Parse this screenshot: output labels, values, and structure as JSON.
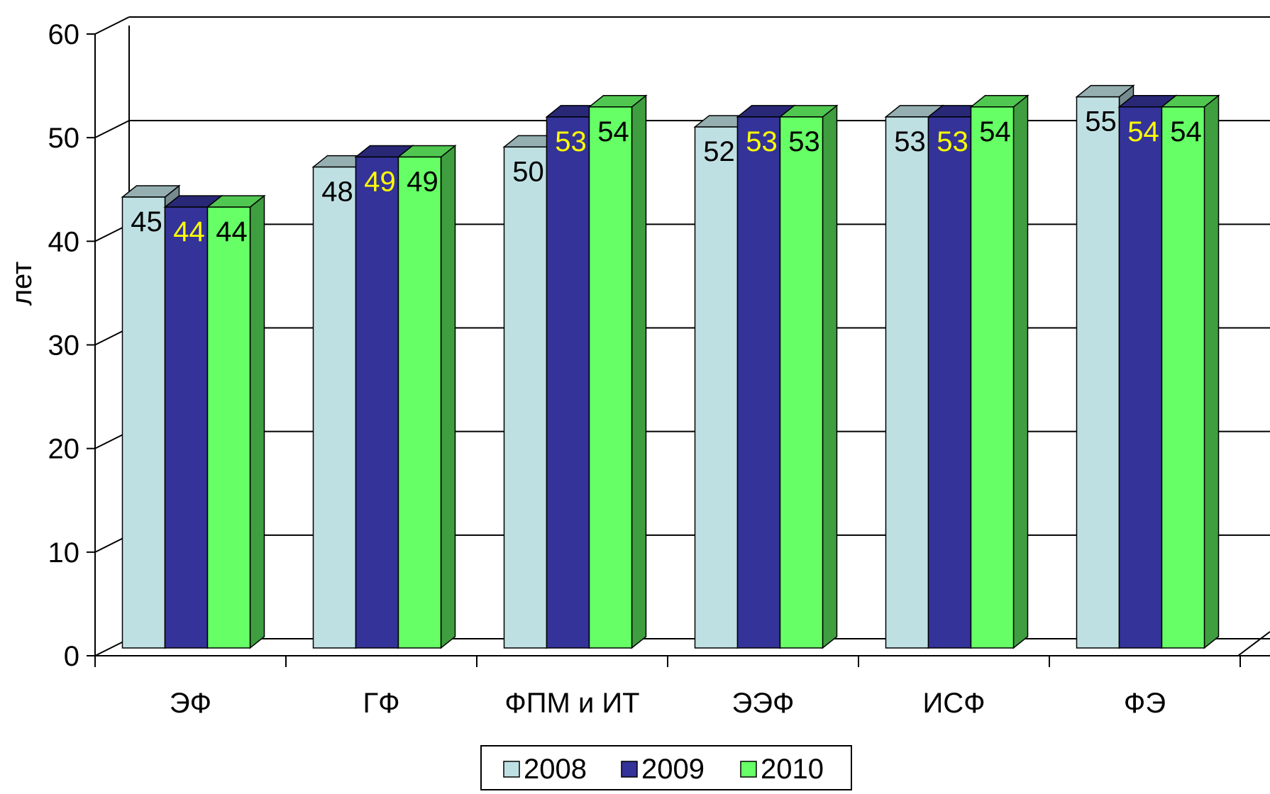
{
  "chart_data": {
    "type": "bar",
    "title": "",
    "xlabel": "",
    "ylabel": "лет",
    "ylim": [
      0,
      60
    ],
    "yticks": [
      "0",
      "10",
      "20",
      "30",
      "40",
      "50",
      "60"
    ],
    "categories": [
      "ЭФ",
      "ГФ",
      "ФПМ и ИТ",
      "ЭЭФ",
      "ИСФ",
      "ФЭ"
    ],
    "series": [
      {
        "name": "2008",
        "values": [
          45,
          48,
          50,
          52,
          53,
          55
        ],
        "color": "#bfe0e3",
        "label_color": "#000000"
      },
      {
        "name": "2009",
        "values": [
          44,
          49,
          53,
          53,
          53,
          54
        ],
        "color": "#333399",
        "label_color": "#ffff00"
      },
      {
        "name": "2010",
        "values": [
          44,
          49,
          54,
          53,
          54,
          54
        ],
        "color": "#66ff66",
        "label_color": "#000000"
      }
    ],
    "grid": true,
    "legend_position": "bottom",
    "style": "3d-clustered-columns"
  }
}
